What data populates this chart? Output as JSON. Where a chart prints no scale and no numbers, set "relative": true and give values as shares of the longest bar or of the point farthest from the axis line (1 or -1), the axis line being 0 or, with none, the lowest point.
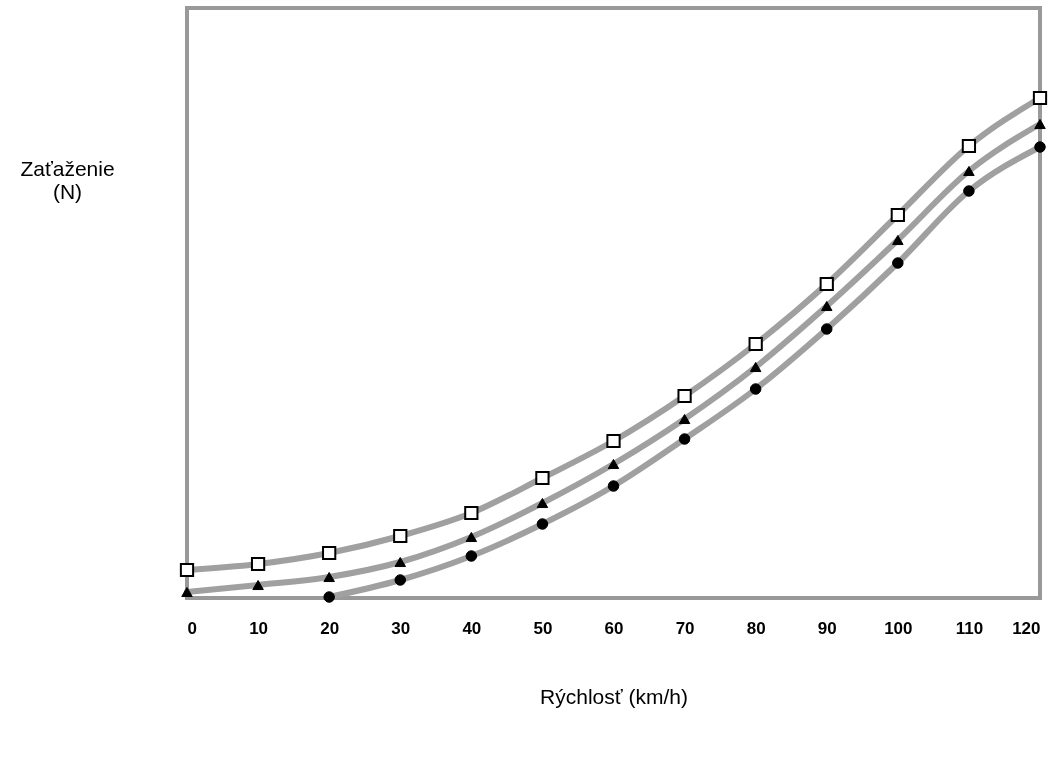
{
  "chart_data": {
    "type": "line",
    "xlabel": "Rýchlosť (km/h)",
    "ylabel": "Zaťaženie\n(N)",
    "relative": true,
    "x": [
      0,
      10,
      20,
      30,
      40,
      50,
      60,
      70,
      80,
      90,
      100,
      110,
      120
    ],
    "xlim": [
      0,
      120
    ],
    "xticks": [
      0,
      10,
      20,
      30,
      40,
      50,
      60,
      70,
      80,
      90,
      100,
      110,
      120
    ],
    "grid": false,
    "line_style": "solid",
    "series": [
      {
        "color": "#a0a0a0",
        "marker": "square",
        "values": [
          0.056,
          0.068,
          0.09,
          0.124,
          0.17,
          0.24,
          0.314,
          0.404,
          0.508,
          0.628,
          0.766,
          0.904,
          1
        ]
      },
      {
        "color": "#a0a0a0",
        "marker": "triangle",
        "values": [
          0.012,
          0.026,
          0.042,
          0.072,
          0.122,
          0.19,
          0.268,
          0.358,
          0.462,
          0.584,
          0.716,
          0.854,
          0.948
        ]
      },
      {
        "color": "#a0a0a0",
        "marker": "circle",
        "values": [
          null,
          null,
          0.002,
          0.036,
          0.084,
          0.148,
          0.224,
          0.318,
          0.418,
          0.538,
          0.67,
          0.814,
          0.902
        ]
      }
    ]
  }
}
